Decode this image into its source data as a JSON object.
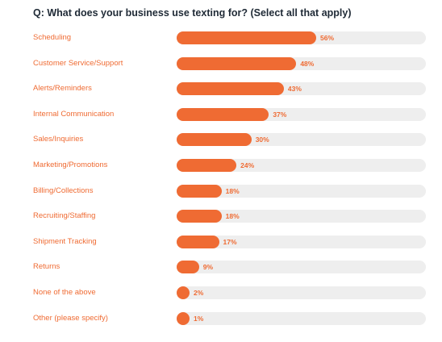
{
  "chart_data": {
    "type": "bar",
    "orientation": "horizontal",
    "title": "Q: What does your business use texting for? (Select all that apply)",
    "categories": [
      "Scheduling",
      "Customer Service/Support",
      "Alerts/Reminders",
      "Internal Communication",
      "Sales/Inquiries",
      "Marketing/Promotions",
      "Billing/Collections",
      "Recruiting/Staffing",
      "Shipment Tracking",
      "Returns",
      "None of the above",
      "Other (please specify)"
    ],
    "values": [
      56,
      48,
      43,
      37,
      30,
      24,
      18,
      18,
      17,
      9,
      2,
      1
    ],
    "value_labels": [
      "56%",
      "48%",
      "43%",
      "37%",
      "30%",
      "24%",
      "18%",
      "18%",
      "17%",
      "9%",
      "2%",
      "1%"
    ],
    "xlim": [
      0,
      100
    ],
    "grid": false,
    "legend": "none"
  },
  "colors": {
    "bar": "#ef6b33",
    "track": "#eeeeee",
    "label": "#ef6b33",
    "title": "#1f2a36"
  }
}
